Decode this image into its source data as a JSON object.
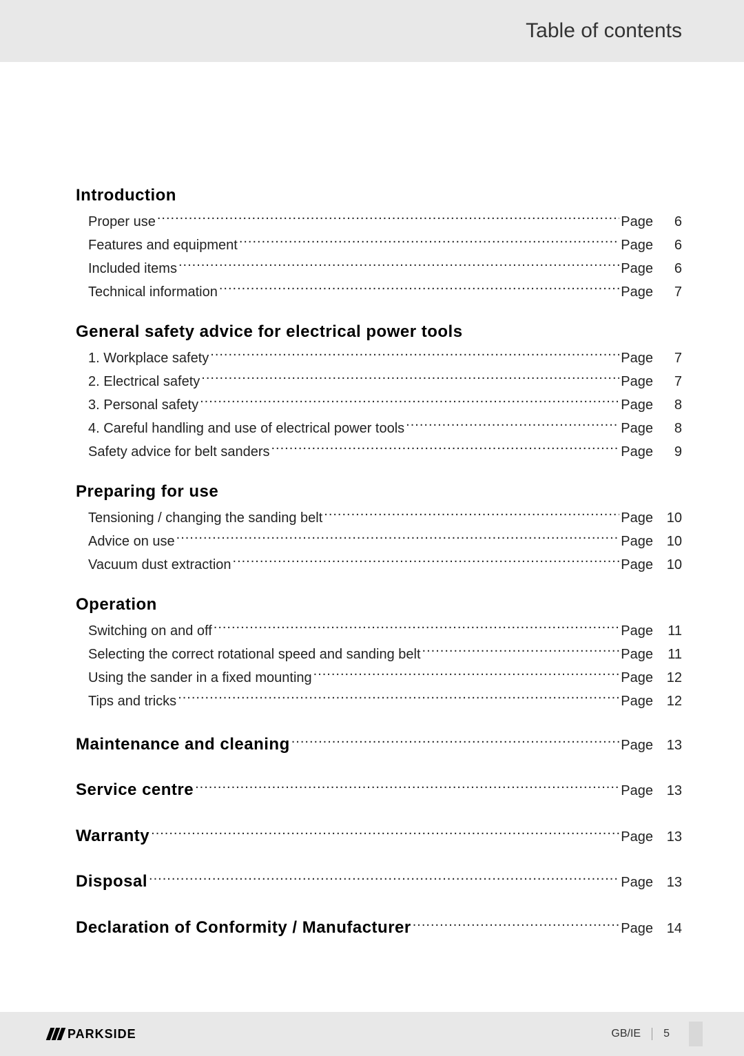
{
  "header": {
    "title": "Table of contents"
  },
  "page_label": "Page",
  "sections": [
    {
      "title": "Introduction",
      "entries": [
        {
          "label": "Proper use",
          "page": "6"
        },
        {
          "label": "Features and equipment",
          "page": "6"
        },
        {
          "label": "Included items",
          "page": "6"
        },
        {
          "label": "Technical information",
          "page": "7"
        }
      ]
    },
    {
      "title": "General safety advice for electrical power tools",
      "entries": [
        {
          "label": "1. Workplace safety",
          "page": "7"
        },
        {
          "label": "2. Electrical safety",
          "page": "7"
        },
        {
          "label": "3. Personal safety",
          "page": "8"
        },
        {
          "label": "4. Careful handling and use of electrical power tools",
          "page": "8"
        },
        {
          "label": "Safety advice for belt sanders",
          "page": "9"
        }
      ]
    },
    {
      "title": "Preparing for use",
      "entries": [
        {
          "label": "Tensioning / changing the sanding belt",
          "page": "10"
        },
        {
          "label": "Advice on use",
          "page": "10"
        },
        {
          "label": "Vacuum dust extraction",
          "page": "10"
        }
      ]
    },
    {
      "title": "Operation",
      "entries": [
        {
          "label": "Switching on and off",
          "page": "11"
        },
        {
          "label": "Selecting the correct rotational speed and sanding belt",
          "page": "11"
        },
        {
          "label": "Using the sander in a fixed mounting",
          "page": "12"
        },
        {
          "label": "Tips and tricks",
          "page": "12"
        }
      ]
    }
  ],
  "flat_sections": [
    {
      "title": "Maintenance and cleaning",
      "page": "13"
    },
    {
      "title": "Service centre",
      "page": "13"
    },
    {
      "title": "Warranty",
      "page": "13"
    },
    {
      "title": "Disposal",
      "page": "13"
    },
    {
      "title": "Declaration of Conformity / Manufacturer",
      "page": "14"
    }
  ],
  "footer": {
    "brand": "PARKSIDE",
    "region": "GB/IE",
    "page_number": "5"
  },
  "colors": {
    "page_bg": "#ffffff",
    "band_bg": "#e8e8e8",
    "text": "#222222",
    "heading": "#000000"
  }
}
